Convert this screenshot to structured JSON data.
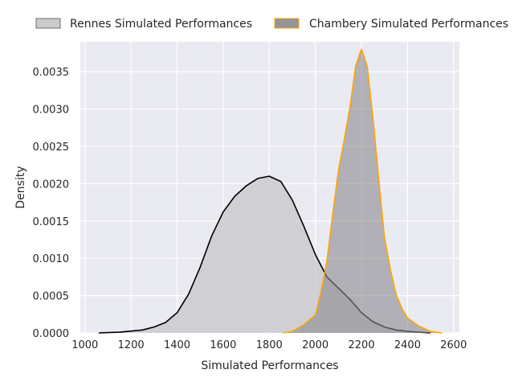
{
  "chart_data": {
    "type": "area",
    "xlabel": "Simulated Performances",
    "ylabel": "Density",
    "xlim": [
      980,
      2625
    ],
    "ylim": [
      0,
      0.0039
    ],
    "x_ticks": [
      1000,
      1200,
      1400,
      1600,
      1800,
      2000,
      2200,
      2400,
      2600
    ],
    "x_tick_labels": [
      "1000",
      "1200",
      "1400",
      "1600",
      "1800",
      "2000",
      "2200",
      "2400",
      "2600"
    ],
    "y_ticks": [
      0,
      0.0005,
      0.001,
      0.0015,
      0.002,
      0.0025,
      0.003,
      0.0035
    ],
    "y_tick_labels": [
      "0.0000",
      "0.0005",
      "0.0010",
      "0.0015",
      "0.0020",
      "0.0025",
      "0.0030",
      "0.0035"
    ],
    "grid": true,
    "legend_position": "top",
    "series": [
      {
        "name": "Rennes Simulated Performances",
        "fill": "#c5c5c9",
        "line": "#000000",
        "points": [
          [
            1060,
            0
          ],
          [
            1150,
            1e-05
          ],
          [
            1250,
            4e-05
          ],
          [
            1300,
            8e-05
          ],
          [
            1350,
            0.00014
          ],
          [
            1400,
            0.00027
          ],
          [
            1450,
            0.00052
          ],
          [
            1500,
            0.00088
          ],
          [
            1550,
            0.0013
          ],
          [
            1600,
            0.00162
          ],
          [
            1650,
            0.00183
          ],
          [
            1700,
            0.00197
          ],
          [
            1750,
            0.00207
          ],
          [
            1800,
            0.0021
          ],
          [
            1850,
            0.00203
          ],
          [
            1900,
            0.00178
          ],
          [
            1950,
            0.00143
          ],
          [
            2000,
            0.00105
          ],
          [
            2050,
            0.00075
          ],
          [
            2100,
            0.0006
          ],
          [
            2150,
            0.00045
          ],
          [
            2200,
            0.00027
          ],
          [
            2250,
            0.00015
          ],
          [
            2300,
            8e-05
          ],
          [
            2350,
            4e-05
          ],
          [
            2400,
            2e-05
          ],
          [
            2450,
            1e-05
          ],
          [
            2500,
            0
          ]
        ]
      },
      {
        "name": "Chambery Simulated Performances",
        "fill": "#8a888e",
        "line": "#ffa500",
        "points": [
          [
            1860,
            0
          ],
          [
            1900,
            2e-05
          ],
          [
            1950,
            0.00011
          ],
          [
            2000,
            0.00024
          ],
          [
            2025,
            0.00055
          ],
          [
            2050,
            0.00096
          ],
          [
            2075,
            0.00158
          ],
          [
            2100,
            0.00218
          ],
          [
            2125,
            0.00258
          ],
          [
            2150,
            0.00302
          ],
          [
            2175,
            0.00358
          ],
          [
            2200,
            0.0038
          ],
          [
            2225,
            0.00357
          ],
          [
            2250,
            0.00288
          ],
          [
            2275,
            0.00205
          ],
          [
            2300,
            0.00128
          ],
          [
            2325,
            0.00086
          ],
          [
            2350,
            0.00052
          ],
          [
            2375,
            0.00033
          ],
          [
            2400,
            0.0002
          ],
          [
            2450,
            9e-05
          ],
          [
            2500,
            2e-05
          ],
          [
            2550,
            0
          ]
        ]
      }
    ]
  }
}
